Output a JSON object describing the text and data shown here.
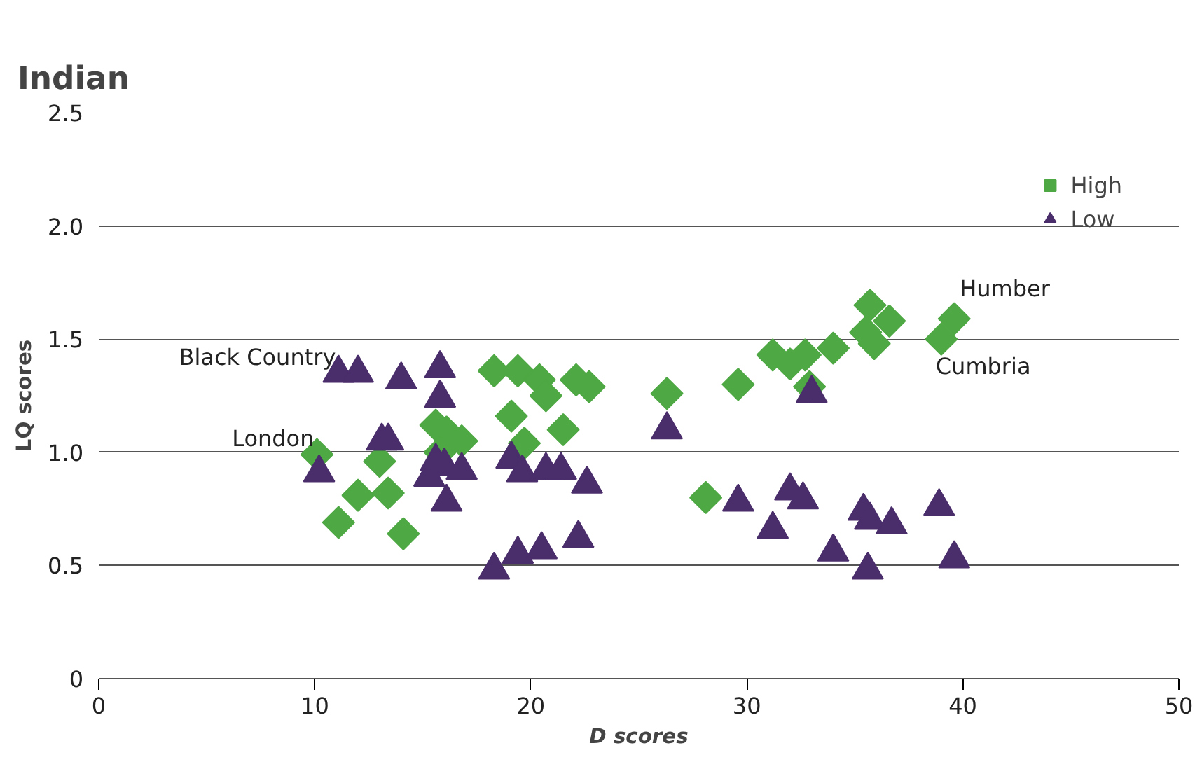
{
  "chart_data": {
    "type": "scatter",
    "title": "Indian",
    "xlabel": "D scores",
    "ylabel": "LQ scores",
    "xlim": [
      0,
      50
    ],
    "xticks": [
      0,
      10,
      20,
      30,
      40,
      50
    ],
    "ylim": [
      0,
      2.5
    ],
    "yticks": [
      0,
      0.5,
      {
        "value": 1,
        "label": "1.0"
      },
      1.5,
      {
        "value": 2,
        "label": "2.0"
      },
      2.5
    ],
    "grid": "y",
    "legend": "top right",
    "series": [
      {
        "name": "High",
        "color": "#4ea843",
        "marker": "diamond",
        "x": [
          10.1,
          11.1,
          12.0,
          13.0,
          13.4,
          14.1,
          15.6,
          16.1,
          16.8,
          15.8,
          18.3,
          19.4,
          19.1,
          19.7,
          20.4,
          20.7,
          21.5,
          22.1,
          22.7,
          26.3,
          28.1,
          29.6,
          31.2,
          32.0,
          32.7,
          32.9,
          34.0,
          35.7,
          36.6,
          35.9,
          35.5,
          39.0,
          39.6
        ],
        "values": [
          0.99,
          0.69,
          0.81,
          0.96,
          0.82,
          0.64,
          1.12,
          1.09,
          1.05,
          1.0,
          1.36,
          1.36,
          1.16,
          1.04,
          1.32,
          1.25,
          1.1,
          1.32,
          1.29,
          1.26,
          0.8,
          1.3,
          1.43,
          1.39,
          1.43,
          1.29,
          1.46,
          1.65,
          1.58,
          1.48,
          1.53,
          1.5,
          1.59
        ]
      },
      {
        "name": "Low",
        "color": "#4a2d6b",
        "marker": "triangle",
        "x": [
          10.2,
          11.1,
          12.0,
          14.0,
          13.1,
          13.4,
          15.8,
          15.8,
          15.3,
          15.6,
          16.1,
          16.8,
          16.0,
          18.3,
          19.1,
          19.4,
          19.6,
          20.5,
          20.7,
          21.4,
          22.6,
          22.2,
          26.3,
          29.6,
          31.2,
          32.0,
          32.6,
          33.0,
          34.0,
          35.4,
          35.7,
          36.7,
          35.6,
          38.9,
          39.6
        ],
        "values": [
          0.91,
          1.35,
          1.35,
          1.32,
          1.05,
          1.05,
          1.37,
          1.24,
          0.89,
          0.96,
          0.78,
          0.92,
          0.94,
          0.48,
          0.97,
          0.55,
          0.91,
          0.57,
          0.92,
          0.92,
          0.86,
          0.62,
          1.1,
          0.78,
          0.66,
          0.83,
          0.79,
          1.26,
          0.56,
          0.74,
          0.7,
          0.68,
          0.48,
          0.76,
          0.53
        ]
      }
    ],
    "annotations": [
      {
        "text": "Black Country",
        "x": 11.1,
        "y": 1.35
      },
      {
        "text": "London",
        "x": 10.1,
        "y": 0.99
      },
      {
        "text": "Humber",
        "x": 39.6,
        "y": 1.59
      },
      {
        "text": "Cumbria",
        "x": 39.0,
        "y": 1.5
      }
    ]
  }
}
